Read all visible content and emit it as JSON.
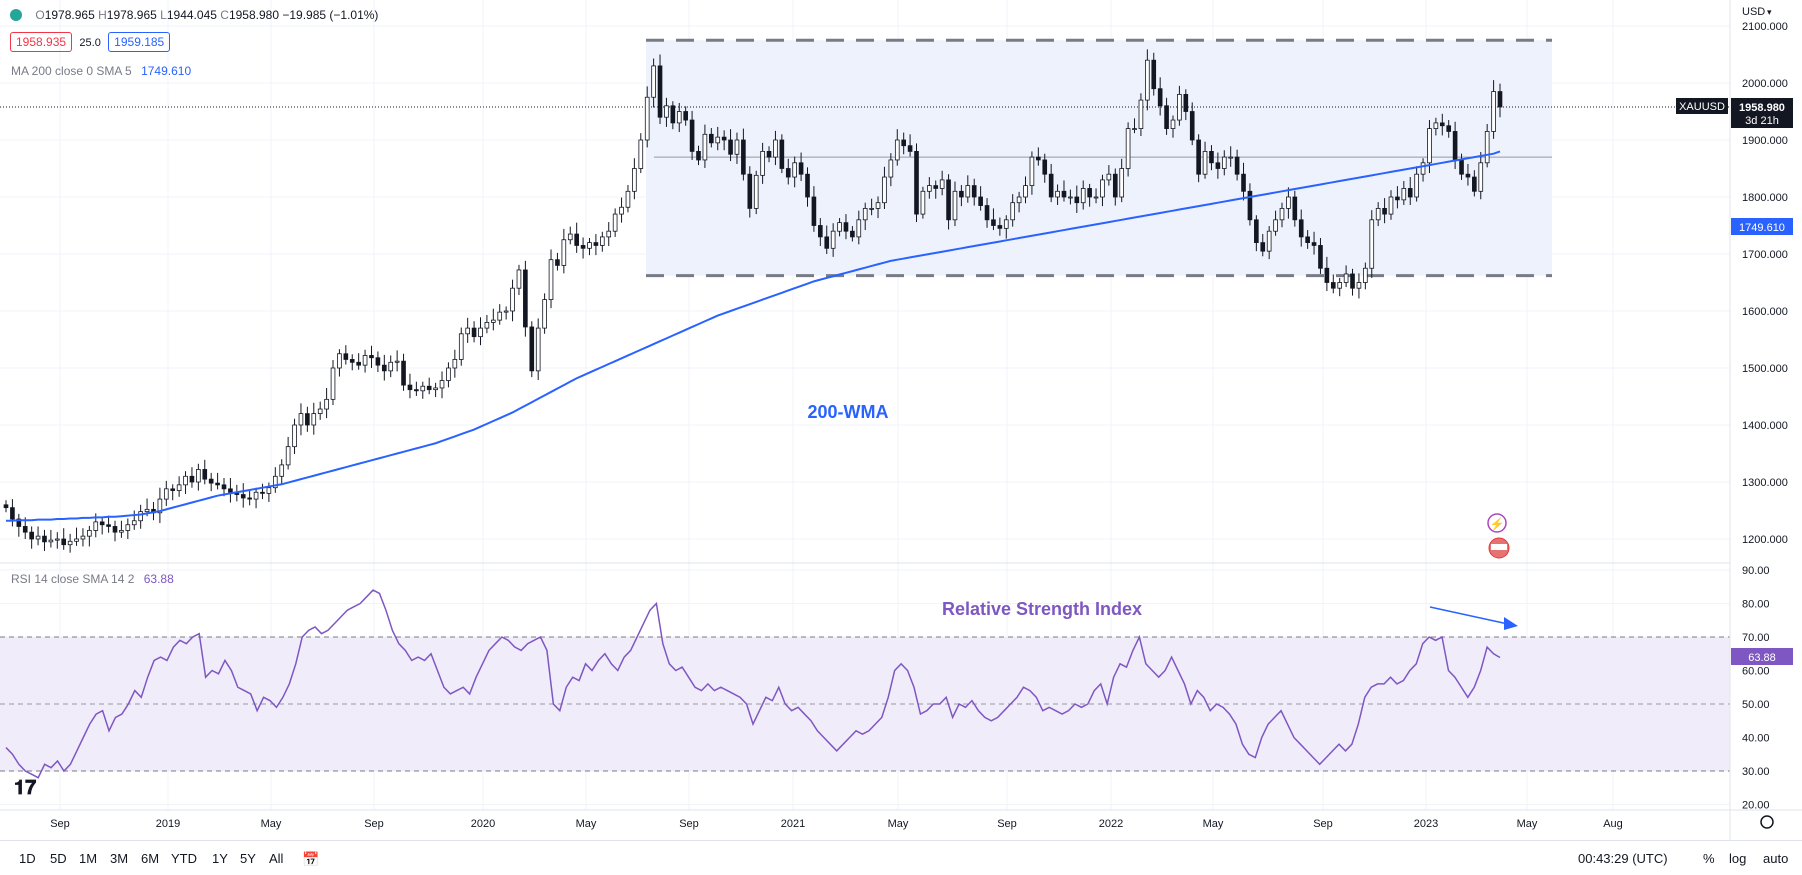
{
  "header": {
    "ohlc": {
      "o": "1978.965",
      "h": "1978.965",
      "l": "1944.045",
      "c": "1958.980",
      "change": "−19.985 (−1.01%)"
    },
    "bid": "1958.935",
    "spread": "25.0",
    "ask": "1959.185",
    "ma_label": "MA 200 close 0 SMA 5",
    "ma_value": "1749.610",
    "rsi_label": "RSI 14 close SMA 14 2",
    "rsi_value": "63.88",
    "currency": "USD"
  },
  "price_axis": {
    "ticks": [
      "2100.000",
      "2000.000",
      "1900.000",
      "1800.000",
      "1700.000",
      "1600.000",
      "1500.000",
      "1400.000",
      "1300.000",
      "1200.000"
    ],
    "symbol_tag": "XAUUSD",
    "last_price": "1958.980",
    "countdown": "3d 21h",
    "ma_tag": "1749.610"
  },
  "rsi_axis": {
    "ticks": [
      "90.00",
      "80.00",
      "70.00",
      "60.00",
      "50.00",
      "40.00",
      "30.00",
      "20.00"
    ],
    "tag": "63.88"
  },
  "time_axis": [
    "Sep",
    "2019",
    "May",
    "Sep",
    "2020",
    "May",
    "Sep",
    "2021",
    "May",
    "Sep",
    "2022",
    "May",
    "Sep",
    "2023",
    "May",
    "Aug"
  ],
  "annotations": {
    "wma": "200-WMA",
    "rsi": "Relative Strength Index"
  },
  "toolbar": {
    "timeframes": [
      "1D",
      "5D",
      "1M",
      "3M",
      "6M",
      "YTD",
      "1Y",
      "5Y",
      "All"
    ],
    "clock": "00:43:29 (UTC)",
    "percent": "%",
    "log": "log",
    "auto": "auto"
  },
  "colors": {
    "ma": "#2962ff",
    "rsi": "#7e57c2",
    "candle_up": "#ffffff",
    "candle_down": "#131722",
    "range": "#eef2fc"
  },
  "chart_data": [
    {
      "type": "candlestick",
      "title": "XAUUSD weekly",
      "ylim": [
        1150,
        2120
      ],
      "x": "weeks, Jul 2018 – Apr 2023",
      "close": [
        1255,
        1235,
        1222,
        1212,
        1200,
        1205,
        1195,
        1198,
        1200,
        1190,
        1196,
        1200,
        1205,
        1215,
        1230,
        1225,
        1222,
        1212,
        1215,
        1225,
        1232,
        1248,
        1252,
        1246,
        1270,
        1288,
        1285,
        1295,
        1310,
        1300,
        1322,
        1305,
        1298,
        1295,
        1288,
        1282,
        1278,
        1272,
        1270,
        1282,
        1280,
        1290,
        1310,
        1330,
        1362,
        1400,
        1420,
        1400,
        1420,
        1428,
        1445,
        1500,
        1525,
        1515,
        1510,
        1505,
        1522,
        1518,
        1505,
        1495,
        1510,
        1512,
        1470,
        1462,
        1460,
        1468,
        1462,
        1465,
        1478,
        1500,
        1515,
        1560,
        1570,
        1555,
        1570,
        1580,
        1584,
        1598,
        1600,
        1640,
        1672,
        1572,
        1495,
        1570,
        1620,
        1690,
        1680,
        1725,
        1735,
        1715,
        1710,
        1720,
        1715,
        1730,
        1740,
        1770,
        1782,
        1810,
        1850,
        1900,
        1975,
        2030,
        1940,
        1960,
        1930,
        1950,
        1935,
        1880,
        1865,
        1910,
        1895,
        1905,
        1900,
        1875,
        1900,
        1840,
        1780,
        1838,
        1880,
        1870,
        1900,
        1850,
        1835,
        1860,
        1840,
        1800,
        1750,
        1730,
        1710,
        1740,
        1755,
        1740,
        1730,
        1760,
        1780,
        1780,
        1790,
        1835,
        1865,
        1900,
        1890,
        1880,
        1770,
        1810,
        1820,
        1815,
        1830,
        1760,
        1810,
        1800,
        1820,
        1800,
        1785,
        1760,
        1750,
        1745,
        1760,
        1790,
        1800,
        1820,
        1870,
        1865,
        1840,
        1800,
        1810,
        1800,
        1800,
        1790,
        1815,
        1800,
        1800,
        1830,
        1840,
        1800,
        1850,
        1920,
        1920,
        1970,
        2040,
        1990,
        1960,
        1920,
        1935,
        1980,
        1950,
        1900,
        1840,
        1880,
        1860,
        1850,
        1870,
        1870,
        1840,
        1810,
        1760,
        1720,
        1705,
        1740,
        1760,
        1780,
        1800,
        1760,
        1730,
        1720,
        1715,
        1675,
        1650,
        1640,
        1650,
        1665,
        1640,
        1650,
        1675,
        1760,
        1780,
        1770,
        1800,
        1795,
        1815,
        1800,
        1840,
        1860,
        1920,
        1930,
        1925,
        1915,
        1865,
        1840,
        1835,
        1810,
        1860,
        1915,
        1985,
        1958
      ],
      "ma200": [
        1232,
        1232,
        1233,
        1233,
        1233,
        1234,
        1234,
        1234,
        1235,
        1235,
        1236,
        1236,
        1237,
        1237,
        1238,
        1238,
        1239,
        1239,
        1240,
        1241,
        1242,
        1243,
        1245,
        1247,
        1249,
        1252,
        1255,
        1258,
        1261,
        1264,
        1267,
        1270,
        1273,
        1276,
        1278,
        1280,
        1282,
        1284,
        1286,
        1288,
        1290,
        1292,
        1294,
        1296,
        1299,
        1302,
        1305,
        1308,
        1311,
        1314,
        1317,
        1320,
        1323,
        1326,
        1329,
        1332,
        1335,
        1338,
        1341,
        1344,
        1347,
        1350,
        1353,
        1356,
        1359,
        1362,
        1365,
        1368,
        1372,
        1376,
        1380,
        1384,
        1388,
        1392,
        1397,
        1402,
        1407,
        1412,
        1417,
        1422,
        1428,
        1434,
        1440,
        1446,
        1452,
        1458,
        1464,
        1470,
        1476,
        1482,
        1487,
        1492,
        1497,
        1502,
        1507,
        1512,
        1517,
        1522,
        1527,
        1532,
        1537,
        1542,
        1547,
        1552,
        1557,
        1562,
        1567,
        1572,
        1577,
        1582,
        1587,
        1592,
        1596,
        1600,
        1604,
        1608,
        1612,
        1616,
        1620,
        1624,
        1628,
        1632,
        1636,
        1640,
        1644,
        1648,
        1652,
        1655,
        1658,
        1661,
        1664,
        1667,
        1670,
        1673,
        1676,
        1679,
        1682,
        1685,
        1688,
        1690,
        1692,
        1694,
        1696,
        1698,
        1700,
        1702,
        1704,
        1706,
        1708,
        1710,
        1712,
        1714,
        1716,
        1718,
        1720,
        1722,
        1724,
        1726,
        1728,
        1730,
        1732,
        1734,
        1736,
        1738,
        1740,
        1742,
        1744,
        1746,
        1748,
        1750,
        1752,
        1754,
        1756,
        1758,
        1760,
        1762,
        1764,
        1766,
        1768,
        1770,
        1772,
        1774,
        1776,
        1778,
        1780,
        1782,
        1784,
        1786,
        1788,
        1790,
        1792,
        1794,
        1796,
        1798,
        1800,
        1802,
        1804,
        1806,
        1808,
        1810,
        1812,
        1814,
        1816,
        1818,
        1820,
        1822,
        1824,
        1826,
        1828,
        1830,
        1832,
        1834,
        1836,
        1838,
        1840,
        1842,
        1844,
        1846,
        1848,
        1850,
        1852,
        1854,
        1856,
        1858,
        1860,
        1862,
        1864,
        1866,
        1868,
        1870,
        1872,
        1874,
        1876,
        1880
      ],
      "range_top": 2075,
      "range_bottom": 1662,
      "midline": 1870
    },
    {
      "type": "line",
      "title": "RSI 14",
      "ylim": [
        20,
        90
      ],
      "bands": [
        30,
        50,
        70
      ],
      "values": [
        37,
        35,
        32,
        30,
        29,
        28,
        32,
        31,
        33,
        30,
        32,
        36,
        40,
        44,
        47,
        48,
        42,
        46,
        47,
        50,
        54,
        52,
        58,
        63,
        64,
        63,
        67,
        69,
        68,
        70,
        71,
        58,
        60,
        59,
        63,
        60,
        55,
        54,
        53,
        48,
        52,
        51,
        49,
        52,
        56,
        62,
        70,
        72,
        73,
        71,
        72,
        74,
        76,
        78,
        79,
        80,
        82,
        84,
        83,
        78,
        72,
        68,
        66,
        63,
        64,
        63,
        65,
        60,
        55,
        53,
        54,
        55,
        53,
        58,
        62,
        66,
        68,
        70,
        69,
        67,
        66,
        68,
        69,
        70,
        66,
        50,
        48,
        55,
        58,
        57,
        62,
        60,
        63,
        65,
        62,
        60,
        64,
        66,
        70,
        74,
        78,
        80,
        68,
        62,
        60,
        61,
        58,
        55,
        54,
        56,
        54,
        55,
        54,
        53,
        52,
        50,
        44,
        48,
        52,
        51,
        55,
        50,
        48,
        49,
        47,
        45,
        42,
        40,
        38,
        36,
        38,
        40,
        42,
        41,
        42,
        44,
        46,
        52,
        60,
        62,
        60,
        55,
        47,
        48,
        50,
        50,
        52,
        46,
        50,
        49,
        51,
        48,
        46,
        45,
        46,
        48,
        50,
        52,
        55,
        54,
        52,
        48,
        49,
        48,
        47,
        48,
        50,
        49,
        50,
        54,
        56,
        50,
        58,
        62,
        61,
        66,
        70,
        62,
        60,
        58,
        60,
        64,
        60,
        56,
        50,
        54,
        52,
        48,
        50,
        49,
        47,
        44,
        38,
        35,
        34,
        40,
        44,
        46,
        48,
        44,
        40,
        38,
        36,
        34,
        32,
        34,
        36,
        38,
        36,
        38,
        44,
        52,
        55,
        56,
        56,
        58,
        56,
        57,
        60,
        62,
        68,
        70,
        69,
        70,
        60,
        58,
        55,
        52,
        55,
        60,
        67,
        65,
        63.88
      ]
    }
  ]
}
